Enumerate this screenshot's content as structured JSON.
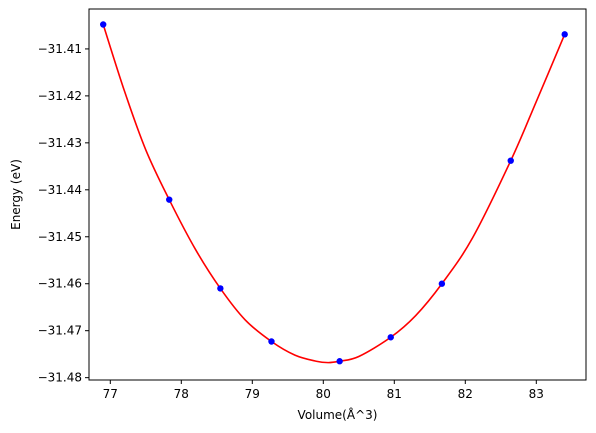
{
  "chart_data": {
    "type": "scatter",
    "xlabel": "Volume(Å^3)",
    "ylabel": "Energy (eV)",
    "xlim": [
      76.7,
      83.7
    ],
    "ylim": [
      -31.4805,
      -31.4015
    ],
    "grid": false,
    "xticks": [
      77,
      78,
      79,
      80,
      81,
      82,
      83
    ],
    "yticks": [
      -31.41,
      -31.42,
      -31.43,
      -31.44,
      -31.45,
      -31.46,
      -31.47,
      -31.48
    ],
    "series": [
      {
        "kind": "points",
        "color": "#0000ff",
        "x": [
          76.9,
          77.83,
          78.55,
          79.27,
          80.23,
          80.95,
          81.67,
          82.64,
          83.4
        ],
        "y": [
          -31.4048,
          -31.4421,
          -31.461,
          -31.4723,
          -31.4765,
          -31.4714,
          -31.46,
          -31.4338,
          -31.4069
        ]
      },
      {
        "kind": "fit-curve",
        "color": "#ff0000",
        "x": [
          76.9,
          77.2,
          77.5,
          77.83,
          78.2,
          78.55,
          78.9,
          79.27,
          79.6,
          79.9,
          80.07,
          80.23,
          80.5,
          80.95,
          81.3,
          81.67,
          82.1,
          82.64,
          83.0,
          83.4
        ],
        "y": [
          -31.4048,
          -31.419,
          -31.4315,
          -31.4421,
          -31.4527,
          -31.461,
          -31.4677,
          -31.4723,
          -31.4752,
          -31.4765,
          -31.4768,
          -31.4765,
          -31.4755,
          -31.4714,
          -31.4668,
          -31.46,
          -31.4503,
          -31.4338,
          -31.4212,
          -31.4069
        ]
      }
    ]
  }
}
